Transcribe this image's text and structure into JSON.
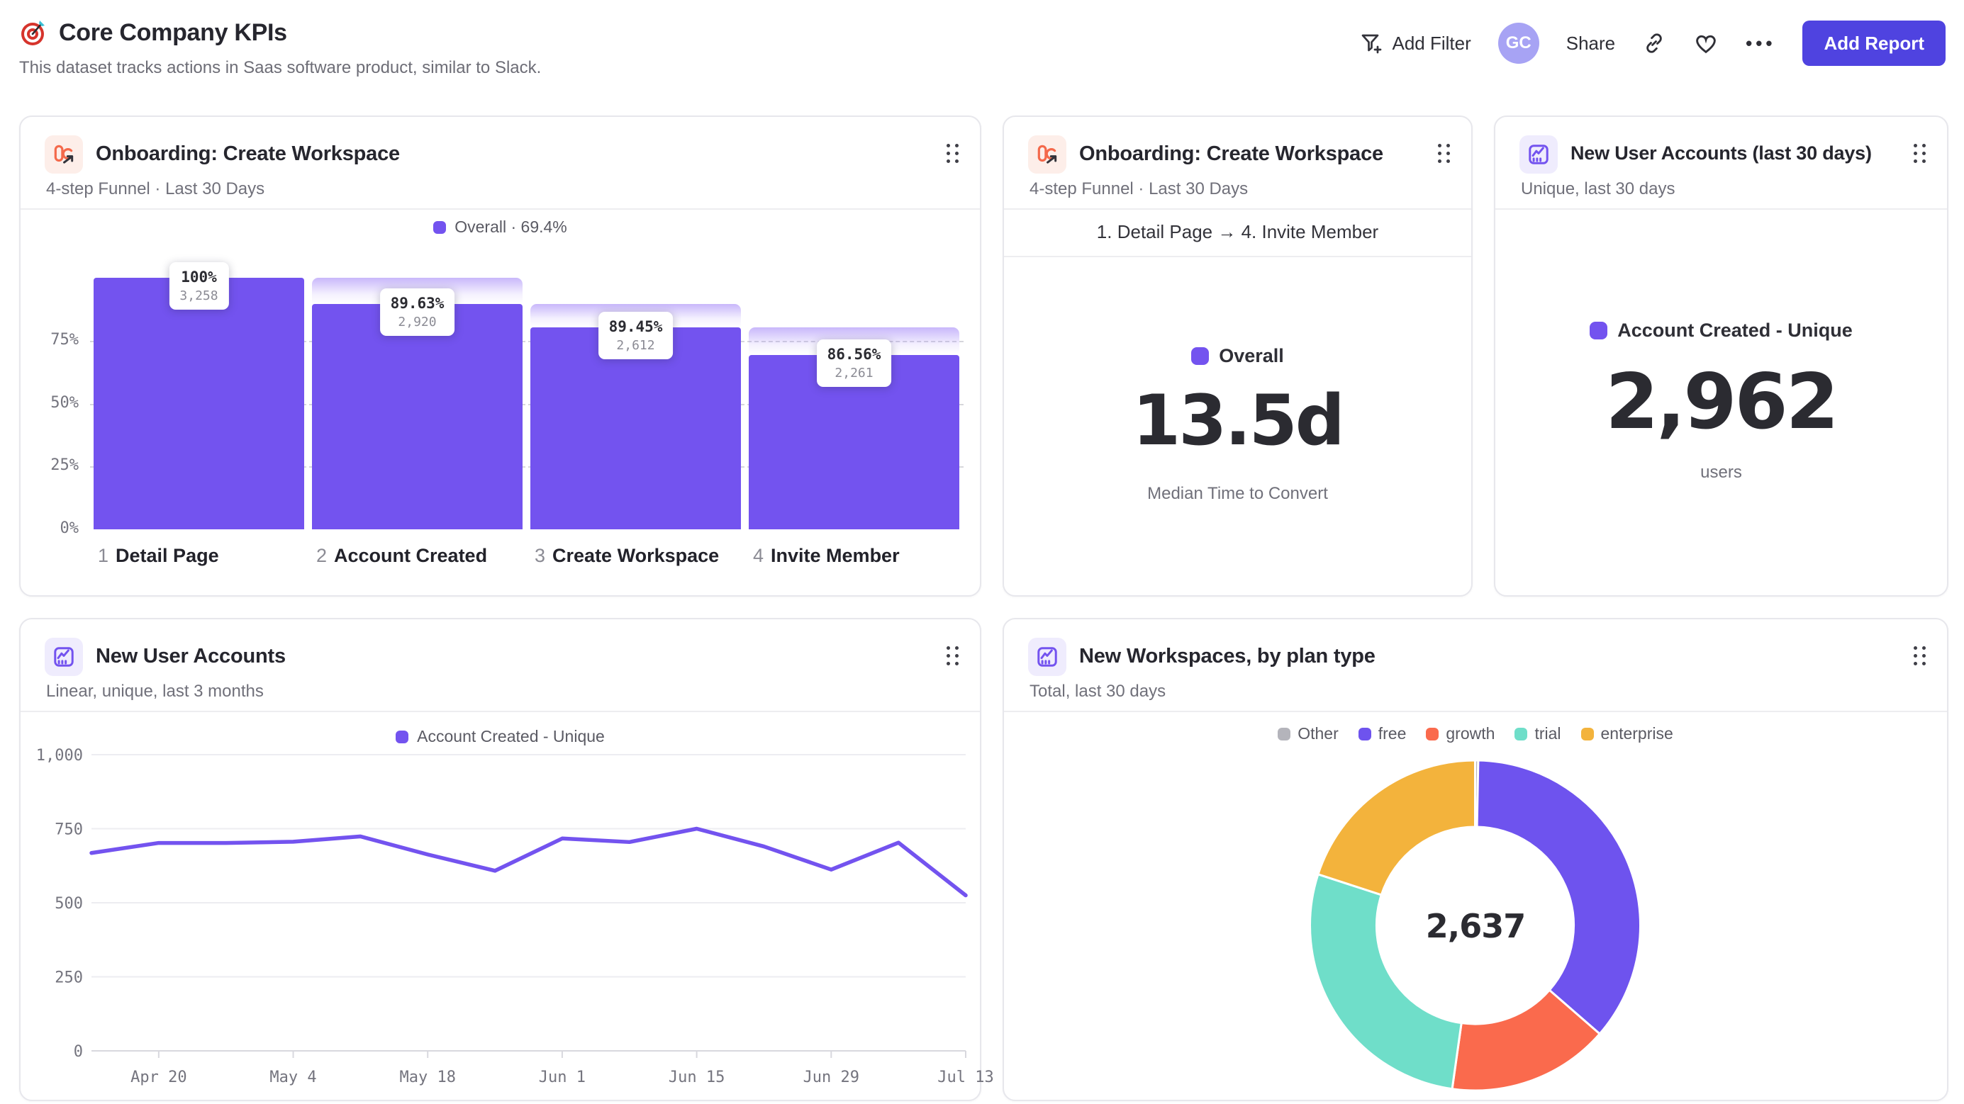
{
  "page": {
    "title": "Core Company KPIs",
    "subtitle": "This dataset tracks actions in Saas software product, similar to Slack.",
    "title_icon": "target-dart-emoji"
  },
  "header": {
    "add_filter_label": "Add Filter",
    "avatar_initials": "GC",
    "share_label": "Share",
    "more_label": "•••",
    "add_report_label": "Add Report"
  },
  "colors": {
    "accent_purple": "#7353ef",
    "button_indigo": "#4f43e0",
    "avatar_bg": "#a7a3f4",
    "funnel_icon_orange": "#f4694b",
    "other_gray": "#b4b4bb",
    "free_purple": "#6e53ee",
    "growth_red": "#fa6a4d",
    "trial_teal": "#6fdec9",
    "enterprise_yellow": "#f3b33c"
  },
  "cards": {
    "funnel": {
      "icon": "funnel-report-icon",
      "title": "Onboarding: Create Workspace",
      "subtitle": "4-step Funnel · Last 30 Days",
      "legend": "Overall · 69.4%",
      "chart_data": {
        "type": "bar",
        "subtype": "funnel",
        "overall_conversion_pct": 69.4,
        "y_ticks": [
          "75%",
          "50%",
          "25%",
          "0%"
        ],
        "grid": "dashed",
        "steps": [
          {
            "num": "1",
            "label": "Detail Page",
            "pct": "100%",
            "count": "3,258",
            "count_value": 3258,
            "cumulative_pct": 100
          },
          {
            "num": "2",
            "label": "Account Created",
            "pct": "89.63%",
            "count": "2,920",
            "count_value": 2920,
            "cumulative_pct": 89.63
          },
          {
            "num": "3",
            "label": "Create Workspace",
            "pct": "89.45%",
            "count": "2,612",
            "count_value": 2612,
            "cumulative_pct": 80.17
          },
          {
            "num": "4",
            "label": "Invite Member",
            "pct": "86.56%",
            "count": "2,261",
            "count_value": 2261,
            "cumulative_pct": 69.4
          }
        ]
      }
    },
    "median_time": {
      "icon": "funnel-report-icon",
      "title": "Onboarding: Create Workspace",
      "subtitle": "4-step Funnel · Last 30 Days",
      "range": "1. Detail Page → 4. Invite Member",
      "legend": "Overall",
      "value": "13.5d",
      "caption": "Median Time to Convert"
    },
    "new_accounts_30d": {
      "icon": "insights-report-icon",
      "title": "New User Accounts (last 30 days)",
      "subtitle": "Unique, last 30 days",
      "legend": "Account Created - Unique",
      "value": "2,962",
      "caption": "users"
    },
    "new_accounts_trend": {
      "icon": "insights-report-icon",
      "title": "New User Accounts",
      "subtitle": "Linear, unique, last 3 months",
      "legend": "Account Created - Unique",
      "chart_data": {
        "type": "line",
        "series_name": "Account Created - Unique",
        "x": [
          "Apr 13",
          "Apr 20",
          "Apr 27",
          "May 4",
          "May 11",
          "May 18",
          "May 25",
          "Jun 1",
          "Jun 8",
          "Jun 15",
          "Jun 22",
          "Jun 29",
          "Jul 6",
          "Jul 13"
        ],
        "values": [
          668,
          702,
          702,
          706,
          724,
          663,
          608,
          717,
          705,
          750,
          690,
          612,
          703,
          525
        ],
        "x_tick_labels": [
          "Apr 20",
          "May 4",
          "May 18",
          "Jun 1",
          "Jun 15",
          "Jun 29",
          "Jul 13"
        ],
        "y_ticks": [
          1000,
          750,
          500,
          250,
          0
        ],
        "y_tick_labels": [
          "1,000",
          "750",
          "500",
          "250",
          "0"
        ],
        "ylim": [
          0,
          1000
        ],
        "grid": true,
        "line_color": "#7353ef"
      }
    },
    "workspaces_by_plan": {
      "icon": "insights-report-icon",
      "title": "New Workspaces, by plan type",
      "subtitle": "Total, last 30 days",
      "center_total": "2,637",
      "chart_data": {
        "type": "pie",
        "subtype": "donut",
        "total": 2637,
        "legend_position": "top",
        "segments": [
          {
            "label": "Other",
            "value": 8,
            "color": "#b4b4bb"
          },
          {
            "label": "free",
            "value": 952,
            "color": "#6e53ee"
          },
          {
            "label": "growth",
            "value": 417,
            "color": "#fa6a4d"
          },
          {
            "label": "trial",
            "value": 733,
            "color": "#6fdec9"
          },
          {
            "label": "enterprise",
            "value": 527,
            "color": "#f3b33c"
          }
        ]
      }
    }
  }
}
